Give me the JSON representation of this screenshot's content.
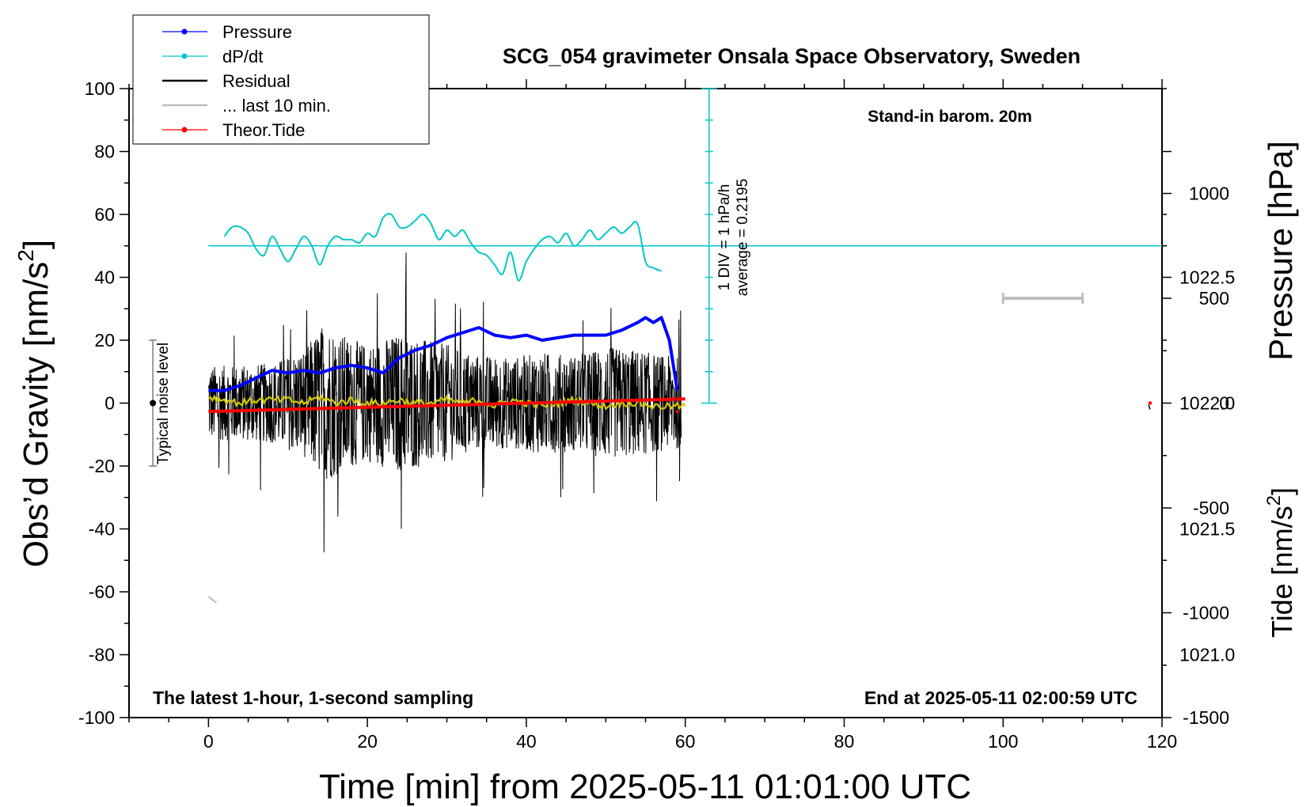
{
  "chart_data": {
    "type": "line",
    "title": "SCG_054 gravimeter Onsala Space Observatory, Sweden",
    "xlabel": "Time [min] from 2025-05-11 01:01:00 UTC",
    "ylabel": "Obs’d Gravity [nm/s2]",
    "ylabel_main": "Obs’d Gravity [nm/s",
    "ylabel_sup": "2",
    "ylabel_close": "]",
    "y2label": "Pressure [hPa]",
    "y3label_main": "Tide [nm/s",
    "y3label_sup": "2",
    "y3label_close": "]",
    "xlim": [
      -10,
      120
    ],
    "ylim": [
      -100,
      100
    ],
    "pressure_lim": [
      1020.75,
      1023.25
    ],
    "tide_lim": [
      -1500,
      1500
    ],
    "x_ticks": [
      "0",
      "20",
      "40",
      "60",
      "80",
      "100",
      "120"
    ],
    "y_ticks": [
      "-100",
      "-80",
      "-60",
      "-40",
      "-20",
      "0",
      "20",
      "40",
      "60",
      "80",
      "100"
    ],
    "pressure_ticks": [
      "1021.0",
      "1021.5",
      "1022.0",
      "1022.5"
    ],
    "tide_ticks": [
      "-1500",
      "-1000",
      "-500",
      "0",
      "500",
      "1000"
    ],
    "legend": [
      {
        "name": "Pressure",
        "color": "#0000ff",
        "marker": true
      },
      {
        "name": "dP/dt",
        "color": "#00c8c8",
        "marker": true
      },
      {
        "name": "Residual",
        "color": "#000000",
        "marker": false
      },
      {
        "name": "... last 10 min.",
        "color": "#bebebe",
        "marker": false
      },
      {
        "name": "Theor.Tide",
        "color": "#ff0000",
        "marker": true
      }
    ],
    "annotations": {
      "barom": "Stand-in barom. 20m",
      "sampling": "The latest 1-hour, 1-second sampling",
      "end": "End at 2025-05-11 02:00:59 UTC",
      "noise": "Typical noise level",
      "div": "1 DIV = 1 hPa/h",
      "average": "average = 0.2195"
    },
    "noise_bar": {
      "x": -7,
      "y_low": -20,
      "y_high": 20,
      "center": 0
    },
    "dpdt_axis": {
      "x": 63,
      "y_zero": 50,
      "y_bottom": 0,
      "y_top": 100,
      "tick_step": 10
    },
    "pressure_series": {
      "x": [
        0,
        2,
        4,
        6,
        8,
        10,
        12,
        14,
        16,
        18,
        20,
        22,
        24,
        26,
        28,
        30,
        32,
        34,
        36,
        38,
        40,
        42,
        44,
        46,
        48,
        50,
        52,
        54,
        55,
        56,
        57,
        58,
        59
      ],
      "y": [
        1022.05,
        1022.05,
        1022.07,
        1022.1,
        1022.13,
        1022.12,
        1022.13,
        1022.12,
        1022.14,
        1022.15,
        1022.14,
        1022.12,
        1022.18,
        1022.21,
        1022.23,
        1022.26,
        1022.28,
        1022.3,
        1022.27,
        1022.26,
        1022.27,
        1022.25,
        1022.26,
        1022.27,
        1022.27,
        1022.27,
        1022.29,
        1022.32,
        1022.34,
        1022.32,
        1022.34,
        1022.25,
        1022.05
      ]
    },
    "dpdt_series": {
      "x": [
        2,
        3,
        4,
        5,
        6,
        7,
        8,
        9,
        10,
        11,
        12,
        13,
        14,
        15,
        16,
        17,
        18,
        19,
        20,
        21,
        22,
        23,
        24,
        25,
        26,
        27,
        28,
        29,
        30,
        31,
        32,
        33,
        34,
        35,
        36,
        37,
        38,
        39,
        40,
        41,
        42,
        43,
        44,
        45,
        46,
        47,
        48,
        49,
        50,
        51,
        52,
        53,
        54,
        55,
        56,
        57
      ],
      "y": [
        53,
        56,
        56,
        54,
        49,
        47,
        53,
        49,
        45,
        49,
        53,
        50,
        44,
        50,
        53,
        52,
        52,
        51,
        54,
        53,
        59,
        60,
        56,
        56,
        58,
        60,
        57,
        52,
        55,
        53,
        55,
        51,
        48,
        47,
        44,
        41,
        48,
        39,
        45,
        49,
        52,
        53,
        51,
        54,
        50,
        52,
        55,
        52,
        54,
        56,
        54,
        56,
        57,
        45,
        43,
        42
      ]
    },
    "residual_smooth": {
      "x": [
        0,
        2,
        4,
        6,
        8,
        10,
        12,
        14,
        16,
        18,
        20,
        22,
        24,
        26,
        28,
        30,
        32,
        34,
        36,
        38,
        40,
        42,
        44,
        46,
        48,
        50,
        52,
        54,
        56,
        58,
        60
      ],
      "y": [
        2,
        1,
        0,
        1,
        1,
        1,
        0,
        2,
        0,
        1,
        0,
        0,
        1,
        0,
        0,
        1,
        0,
        1,
        -1,
        1,
        0,
        -1,
        0,
        1,
        0,
        -1,
        0,
        0,
        -1,
        -1,
        -1
      ]
    },
    "residual_envelope": {
      "x": [
        0,
        4,
        8,
        12,
        14.5,
        18,
        20,
        24,
        27,
        30,
        34,
        38,
        42,
        46,
        50,
        54,
        57,
        59.5
      ],
      "amp": [
        14,
        14,
        15,
        20,
        30,
        24,
        22,
        26,
        24,
        22,
        18,
        17,
        19,
        18,
        21,
        20,
        18,
        17
      ]
    },
    "tide_series": {
      "x": [
        0,
        10,
        20,
        30,
        40,
        50,
        60
      ],
      "y": [
        -40,
        -30,
        -20,
        -10,
        0,
        10,
        20
      ]
    },
    "last10": {
      "x": [
        0,
        1
      ],
      "y": [
        -61.5,
        -63.5
      ]
    },
    "gray_bar": {
      "x0": 100,
      "x1": 110,
      "tide_y": 500
    }
  }
}
